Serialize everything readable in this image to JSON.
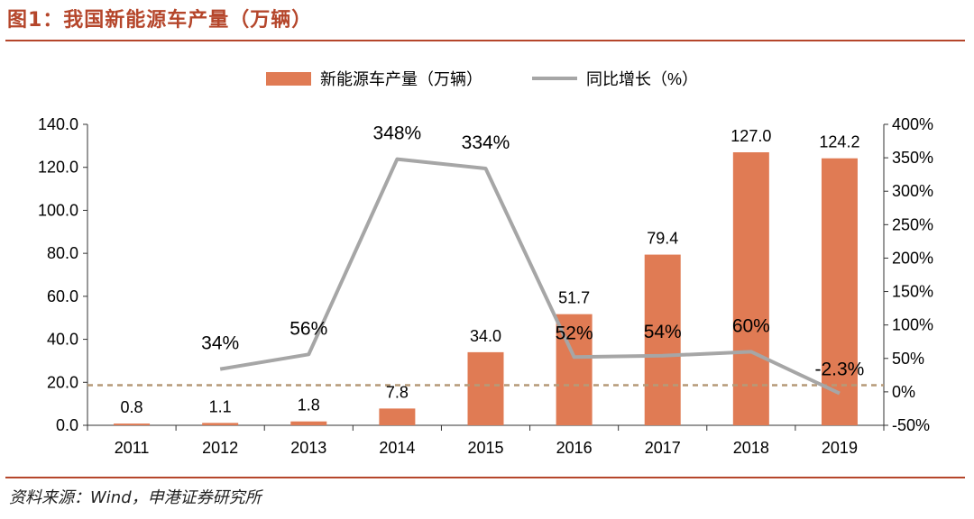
{
  "header": {
    "title": "图1：我国新能源车产量（万辆）"
  },
  "footer": {
    "source": "资料来源：Wind，申港证券研究所"
  },
  "colors": {
    "bar": "#e07b54",
    "line": "#a6a6a6",
    "accent": "#b5462b",
    "refline": "#b59a78"
  },
  "chart_data": {
    "type": "bar",
    "categories": [
      "2011",
      "2012",
      "2013",
      "2014",
      "2015",
      "2016",
      "2017",
      "2018",
      "2019"
    ],
    "series": [
      {
        "name": "新能源车产量（万辆）",
        "type": "bar",
        "axis": "left",
        "values": [
          0.8,
          1.1,
          1.8,
          7.8,
          34.0,
          51.7,
          79.4,
          127.0,
          124.2
        ],
        "labels": [
          "0.8",
          "1.1",
          "1.8",
          "7.8",
          "34.0",
          "51.7",
          "79.4",
          "127.0",
          "124.2"
        ]
      },
      {
        "name": "同比增长（%）",
        "type": "line",
        "axis": "right",
        "values": [
          null,
          34,
          56,
          348,
          334,
          52,
          54,
          60,
          -2.3
        ],
        "labels": [
          "",
          "34%",
          "56%",
          "348%",
          "334%",
          "52%",
          "54%",
          "60%",
          "-2.3%"
        ]
      }
    ],
    "y_left": {
      "lim": [
        0,
        140
      ],
      "ticks": [
        "0.0",
        "20.0",
        "40.0",
        "60.0",
        "80.0",
        "100.0",
        "120.0",
        "140.0"
      ]
    },
    "y_right": {
      "lim": [
        -50,
        400
      ],
      "ticks": [
        "-50%",
        "0%",
        "50%",
        "100%",
        "150%",
        "200%",
        "250%",
        "300%",
        "350%",
        "400%"
      ]
    },
    "reference_line": {
      "axis": "right",
      "value": 10,
      "style": "dashed"
    },
    "legend": "top-center",
    "grid": false
  }
}
